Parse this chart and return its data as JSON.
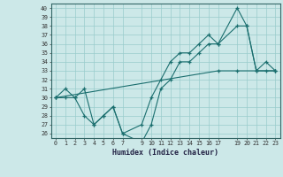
{
  "xlabel": "Humidex (Indice chaleur)",
  "xlim": [
    -0.5,
    23.5
  ],
  "ylim": [
    25.5,
    40.5
  ],
  "xticks": [
    0,
    1,
    2,
    3,
    4,
    5,
    6,
    7,
    9,
    10,
    11,
    12,
    13,
    14,
    15,
    16,
    17,
    19,
    20,
    21,
    22,
    23
  ],
  "yticks": [
    26,
    27,
    28,
    29,
    30,
    31,
    32,
    33,
    34,
    35,
    36,
    37,
    38,
    39,
    40
  ],
  "bg_color": "#cce8e8",
  "line_color": "#1a6e6e",
  "grid_color": "#99cccc",
  "lines": [
    {
      "x": [
        0,
        1,
        2,
        3,
        4,
        5,
        6,
        7,
        9,
        10,
        11,
        12,
        13,
        14,
        15,
        16,
        17,
        19,
        20,
        21,
        22,
        23
      ],
      "y": [
        30,
        31,
        30,
        31,
        27,
        28,
        29,
        26,
        27,
        30,
        32,
        34,
        35,
        35,
        36,
        37,
        36,
        40,
        38,
        33,
        34,
        33
      ]
    },
    {
      "x": [
        0,
        1,
        2,
        3,
        4,
        5,
        6,
        7,
        9,
        10,
        11,
        12,
        13,
        14,
        15,
        16,
        17,
        19,
        20,
        21,
        22,
        23
      ],
      "y": [
        30,
        30,
        30,
        28,
        27,
        28,
        29,
        26,
        25,
        27,
        31,
        32,
        34,
        34,
        35,
        36,
        36,
        38,
        38,
        33,
        33,
        33
      ]
    },
    {
      "x": [
        0,
        17,
        19,
        23
      ],
      "y": [
        30,
        33,
        33,
        33
      ]
    }
  ]
}
